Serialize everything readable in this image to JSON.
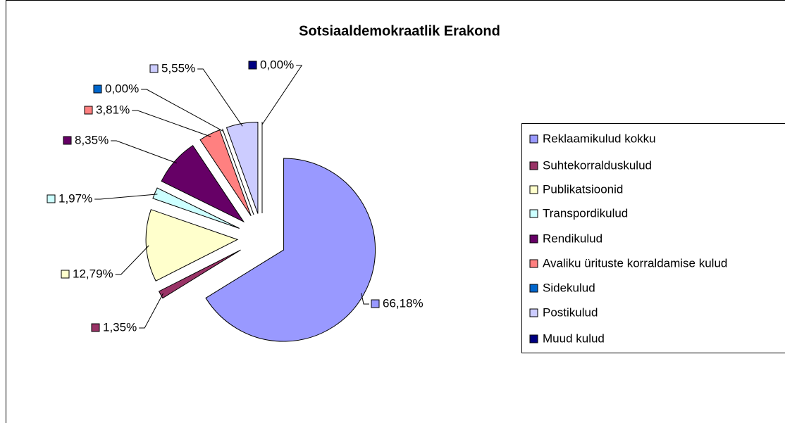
{
  "chart_data": {
    "type": "pie",
    "title": "Sotsiaaldemokraatlik Erakond",
    "categories": [
      "Reklaamikulud kokku",
      "Suhtekorralduskulud",
      "Publikatsioonid",
      "Transpordikulud",
      "Rendikulud",
      "Avaliku ürituste korraldamise kulud",
      "Sidekulud",
      "Postikulud",
      "Muud kulud"
    ],
    "values": [
      66.18,
      1.35,
      12.79,
      1.97,
      8.35,
      3.81,
      0.0,
      5.55,
      0.0
    ],
    "value_labels": [
      "66,18%",
      "1,35%",
      "12,79%",
      "1,97%",
      "8,35%",
      "3,81%",
      "0,00%",
      "5,55%",
      "0,00%"
    ],
    "colors": [
      "#9999ff",
      "#993366",
      "#ffffcc",
      "#ccffff",
      "#660066",
      "#ff8080",
      "#0066cc",
      "#ccccff",
      "#000080"
    ],
    "legend": "right"
  }
}
